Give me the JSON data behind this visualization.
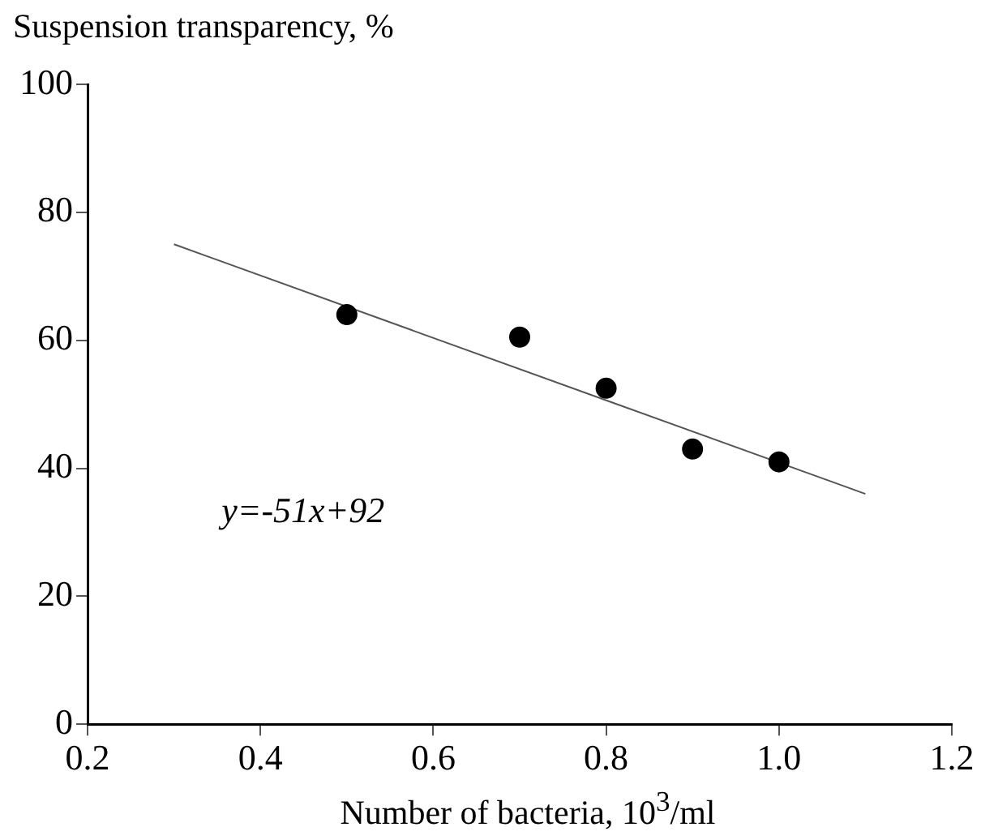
{
  "chart_data": {
    "type": "scatter",
    "xlabel": "Number of bacteria, 10$^{3}$/ml",
    "ylabel": "Suspension transparency, %",
    "x": [
      0.5,
      0.7,
      0.8,
      0.9,
      1.0
    ],
    "series": [
      {
        "type": "scatter",
        "color": "#000000",
        "marker": "circle",
        "values": [
          64,
          60.5,
          52.5,
          43,
          41
        ]
      },
      {
        "type": "line",
        "color": "#555555",
        "marker": "none",
        "x": [
          0.3,
          1.1
        ],
        "values": [
          75,
          36
        ]
      }
    ],
    "xlim": [
      0.2,
      1.2
    ],
    "xticks": [
      0.2,
      0.4,
      0.6,
      0.8,
      {
        "value": 1.0,
        "label": "1.0"
      },
      1.2
    ],
    "ylim": [
      0,
      100
    ],
    "yticks": [
      0,
      20,
      40,
      60,
      80,
      100
    ],
    "grid": false,
    "legend": false,
    "annotations": [
      "y=-51x+92"
    ]
  }
}
